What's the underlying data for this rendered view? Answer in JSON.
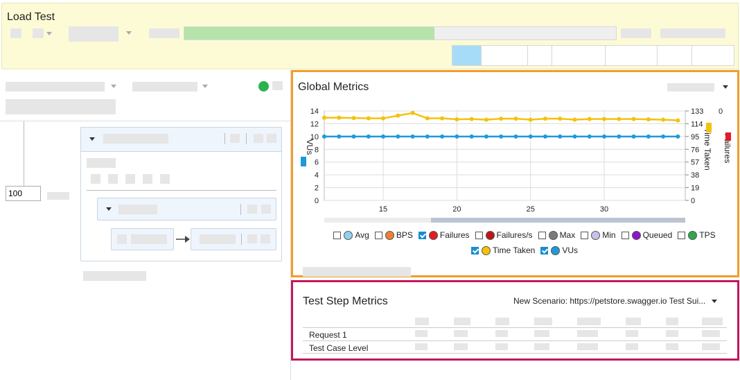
{
  "header": {
    "title": "Load Test",
    "progress": 0.58
  },
  "left_panel": {
    "vu_value": "100"
  },
  "global_metrics": {
    "title": "Global Metrics",
    "legend": [
      {
        "label": "Avg",
        "checked": false,
        "color": "#8fd0ea"
      },
      {
        "label": "BPS",
        "checked": false,
        "color": "#f07f34"
      },
      {
        "label": "Failures",
        "checked": true,
        "color": "#e31b23"
      },
      {
        "label": "Failures/s",
        "checked": false,
        "color": "#c01515"
      },
      {
        "label": "Max",
        "checked": false,
        "color": "#7b7b7b"
      },
      {
        "label": "Min",
        "checked": false,
        "color": "#c8c0e8"
      },
      {
        "label": "Queued",
        "checked": false,
        "color": "#8e14c8"
      },
      {
        "label": "TPS",
        "checked": false,
        "color": "#2fa84f"
      },
      {
        "label": "Time Taken",
        "checked": true,
        "color": "#f4c20d"
      },
      {
        "label": "VUs",
        "checked": true,
        "color": "#1e9ad6"
      }
    ]
  },
  "chart_data": {
    "type": "line",
    "x": [
      11,
      12,
      13,
      14,
      15,
      16,
      17,
      18,
      19,
      20,
      21,
      22,
      23,
      24,
      25,
      26,
      27,
      28,
      29,
      30,
      31,
      32,
      33,
      34,
      35
    ],
    "xticks": [
      15,
      20,
      25,
      30
    ],
    "xlim": [
      11,
      35.5
    ],
    "left_axis": {
      "label": "VUs",
      "ticks": [
        0,
        2,
        4,
        6,
        8,
        10,
        12,
        14
      ],
      "ylim": [
        0,
        14
      ]
    },
    "right_axis_1": {
      "label": "Time Taken",
      "ticks": [
        0,
        19,
        38,
        57,
        76,
        95,
        114,
        133
      ],
      "ylim": [
        0,
        133
      ]
    },
    "right_axis_2": {
      "label": "Failures",
      "ticks": [
        0
      ]
    },
    "series": [
      {
        "name": "VUs",
        "axis": "left",
        "color": "#1e9ad6",
        "values": [
          10,
          10,
          10,
          10,
          10,
          10,
          10,
          10,
          10,
          10,
          10,
          10,
          10,
          10,
          10,
          10,
          10,
          10,
          10,
          10,
          10,
          10,
          10,
          10,
          10
        ]
      },
      {
        "name": "Time Taken",
        "axis": "right_axis_1",
        "color": "#f4c20d",
        "values": [
          123,
          123,
          122.5,
          122,
          122,
          126,
          130,
          122,
          122,
          120.5,
          121,
          120,
          121.5,
          121.5,
          120,
          121.5,
          121.5,
          120,
          121,
          121,
          121,
          121,
          120.5,
          120,
          119
        ]
      }
    ]
  },
  "test_step_metrics": {
    "title": "Test Step Metrics",
    "scenario": "New Scenario: https://petstore.swagger.io Test Sui...",
    "rows": [
      {
        "label": "Request 1"
      },
      {
        "label": "Test Case Level"
      }
    ]
  }
}
